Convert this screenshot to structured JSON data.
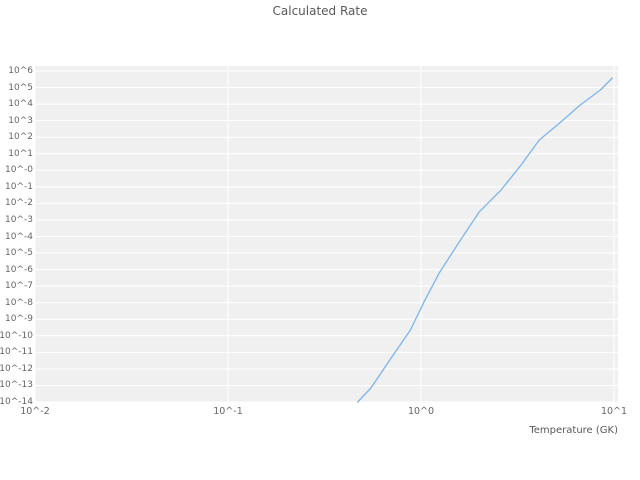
{
  "colors": {
    "line": "#7cb5ec",
    "plot_bg": "#f0f0f0",
    "grid": "#ffffff",
    "text": "#666666"
  },
  "chart_data": {
    "type": "line",
    "title": "Calculated Rate",
    "xlabel": "Temperature (GK)",
    "ylabel": "",
    "x_scale": "log",
    "y_scale": "log",
    "xlim": [
      0.01,
      10
    ],
    "ylim": [
      1e-14,
      1000000.0
    ],
    "grid": true,
    "legend": "none",
    "x_tick_values": [
      0.01,
      0.1,
      1,
      10
    ],
    "x_tick_labels": [
      "10^-2",
      "10^-1",
      "10^0",
      "10^1"
    ],
    "y_tick_exponents": [
      6,
      5,
      4,
      3,
      2,
      1,
      0,
      -1,
      -2,
      -3,
      -4,
      -5,
      -6,
      -7,
      -8,
      -9,
      -10,
      -11,
      -12,
      -13,
      -14
    ],
    "y_tick_labels": [
      "10^6",
      "10^5",
      "10^4",
      "10^3",
      "10^2",
      "10^1",
      "10^-0",
      "10^-1",
      "10^-2",
      "10^-3",
      "10^-4",
      "10^-5",
      "10^-6",
      "10^-7",
      "10^-8",
      "10^-9",
      "10^-10",
      "10^-11",
      "10^-12",
      "10^-13",
      "10^-14"
    ],
    "series": [
      {
        "name": "Calculated Rate",
        "x": [
          0.47,
          0.55,
          0.69,
          0.88,
          1.05,
          1.25,
          1.6,
          2.0,
          2.6,
          3.3,
          4.1,
          5.3,
          6.7,
          8.5,
          9.8
        ],
        "y": [
          1e-14,
          7e-14,
          3.5e-12,
          2.2e-10,
          1.5e-08,
          7e-07,
          6e-05,
          0.003,
          0.065,
          2.1,
          68,
          830,
          8900,
          71000,
          380000
        ]
      }
    ]
  }
}
